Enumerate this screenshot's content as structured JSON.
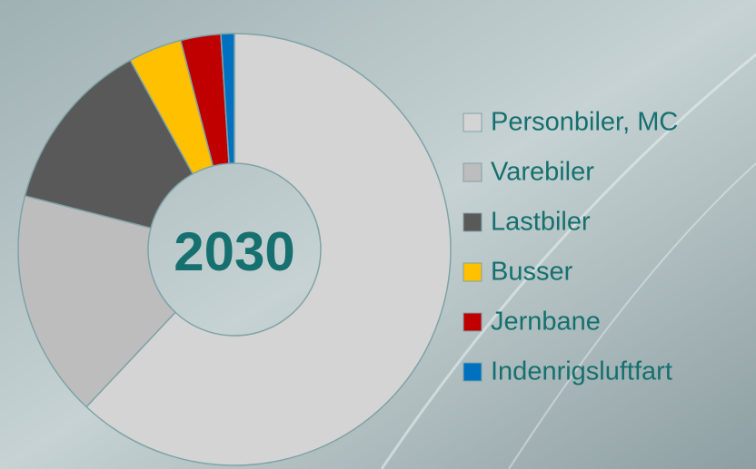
{
  "chart_data": {
    "type": "donut",
    "center_label": "2030",
    "categories": [
      "Personbiler, MC",
      "Varebiler",
      "Lastbiler",
      "Busser",
      "Jernbane",
      "Indenrigsluftfart"
    ],
    "values": [
      62,
      17,
      13,
      4,
      3,
      1
    ],
    "colors": [
      "#d4d4d4",
      "#bdbdbd",
      "#595959",
      "#ffc000",
      "#c00000",
      "#0070c0"
    ],
    "legend": "right"
  }
}
